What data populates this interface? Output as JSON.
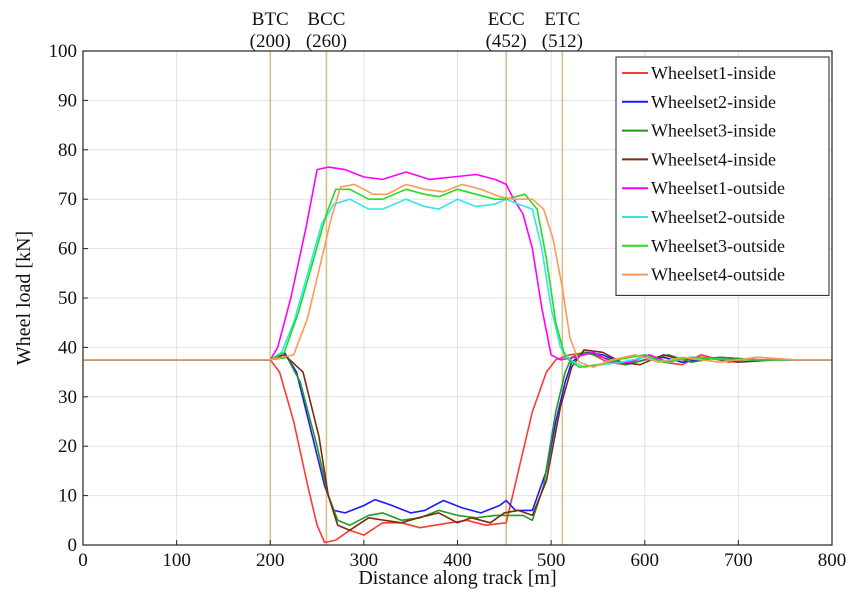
{
  "chart_data": {
    "type": "line",
    "title": "",
    "xlabel": "Distance along track [m]",
    "ylabel": "Wheel load [kN]",
    "xlim": [
      0,
      800
    ],
    "ylim": [
      0,
      100
    ],
    "x_ticks": [
      "0",
      "100",
      "200",
      "300",
      "400",
      "500",
      "600",
      "700",
      "800"
    ],
    "y_ticks": [
      "0",
      "10",
      "20",
      "30",
      "40",
      "50",
      "60",
      "70",
      "80",
      "90",
      "100"
    ],
    "grid": true,
    "legend_position": "top-right",
    "markers": [
      {
        "name": "BTC",
        "value_label": "(200)",
        "x": 200
      },
      {
        "name": "BCC",
        "value_label": "(260)",
        "x": 260
      },
      {
        "name": "ECC",
        "value_label": "(452)",
        "x": 452
      },
      {
        "name": "ETC",
        "value_label": "(512)",
        "x": 512
      }
    ],
    "series": [
      {
        "name": "Wheelset1-inside",
        "color": "#ff3b30",
        "points": [
          [
            0,
            37.5
          ],
          [
            200,
            37.5
          ],
          [
            210,
            35
          ],
          [
            225,
            25
          ],
          [
            240,
            12
          ],
          [
            250,
            4
          ],
          [
            258,
            0.5
          ],
          [
            270,
            1
          ],
          [
            285,
            3
          ],
          [
            300,
            2
          ],
          [
            320,
            4.5
          ],
          [
            340,
            4.5
          ],
          [
            360,
            3.5
          ],
          [
            385,
            4.3
          ],
          [
            410,
            5
          ],
          [
            430,
            4
          ],
          [
            452,
            4.5
          ],
          [
            465,
            15
          ],
          [
            480,
            27
          ],
          [
            495,
            35
          ],
          [
            505,
            37.5
          ],
          [
            520,
            38.5
          ],
          [
            540,
            39
          ],
          [
            560,
            37
          ],
          [
            580,
            36.5
          ],
          [
            600,
            38.5
          ],
          [
            620,
            37
          ],
          [
            640,
            36.5
          ],
          [
            660,
            38.5
          ],
          [
            690,
            37
          ],
          [
            720,
            38
          ],
          [
            760,
            37.5
          ],
          [
            800,
            37.5
          ]
        ]
      },
      {
        "name": "Wheelset2-inside",
        "color": "#1a1aff",
        "points": [
          [
            0,
            37.5
          ],
          [
            200,
            37.5
          ],
          [
            215,
            39
          ],
          [
            228,
            35
          ],
          [
            245,
            22
          ],
          [
            258,
            12
          ],
          [
            268,
            7
          ],
          [
            280,
            6.5
          ],
          [
            300,
            8
          ],
          [
            312,
            9.2
          ],
          [
            330,
            8
          ],
          [
            350,
            6.5
          ],
          [
            365,
            7
          ],
          [
            385,
            9
          ],
          [
            405,
            7.5
          ],
          [
            425,
            6.5
          ],
          [
            445,
            8
          ],
          [
            452,
            9
          ],
          [
            462,
            7
          ],
          [
            480,
            7
          ],
          [
            495,
            15
          ],
          [
            505,
            25
          ],
          [
            515,
            33
          ],
          [
            522,
            37
          ],
          [
            535,
            39
          ],
          [
            555,
            38.5
          ],
          [
            580,
            36.5
          ],
          [
            600,
            37.5
          ],
          [
            620,
            38
          ],
          [
            640,
            37
          ],
          [
            680,
            38
          ],
          [
            720,
            37.5
          ],
          [
            800,
            37.5
          ]
        ]
      },
      {
        "name": "Wheelset3-inside",
        "color": "#1e9e1e",
        "points": [
          [
            0,
            37.5
          ],
          [
            200,
            37.5
          ],
          [
            218,
            38
          ],
          [
            232,
            33
          ],
          [
            250,
            20
          ],
          [
            262,
            10
          ],
          [
            272,
            5
          ],
          [
            285,
            4
          ],
          [
            305,
            6
          ],
          [
            320,
            6.5
          ],
          [
            340,
            5
          ],
          [
            360,
            5.5
          ],
          [
            380,
            7
          ],
          [
            400,
            6
          ],
          [
            420,
            5.5
          ],
          [
            440,
            6
          ],
          [
            455,
            6
          ],
          [
            470,
            6
          ],
          [
            480,
            5
          ],
          [
            492,
            12
          ],
          [
            505,
            27
          ],
          [
            515,
            35
          ],
          [
            522,
            38
          ],
          [
            535,
            39
          ],
          [
            555,
            38
          ],
          [
            580,
            36.5
          ],
          [
            600,
            37.5
          ],
          [
            625,
            38.5
          ],
          [
            650,
            37
          ],
          [
            680,
            38
          ],
          [
            720,
            37.5
          ],
          [
            800,
            37.5
          ]
        ]
      },
      {
        "name": "Wheelset4-inside",
        "color": "#7a2a10",
        "points": [
          [
            0,
            37.5
          ],
          [
            200,
            37.5
          ],
          [
            215,
            38.5
          ],
          [
            235,
            35
          ],
          [
            252,
            22
          ],
          [
            262,
            10
          ],
          [
            272,
            4
          ],
          [
            285,
            3
          ],
          [
            305,
            5.5
          ],
          [
            322,
            5
          ],
          [
            340,
            4.5
          ],
          [
            358,
            5.5
          ],
          [
            380,
            6.5
          ],
          [
            400,
            4.5
          ],
          [
            415,
            5.5
          ],
          [
            435,
            4.5
          ],
          [
            450,
            6.5
          ],
          [
            465,
            7
          ],
          [
            480,
            6
          ],
          [
            495,
            13
          ],
          [
            510,
            28
          ],
          [
            522,
            36
          ],
          [
            535,
            39.5
          ],
          [
            555,
            39
          ],
          [
            575,
            37
          ],
          [
            595,
            36.5
          ],
          [
            620,
            38.5
          ],
          [
            640,
            37.5
          ],
          [
            660,
            38
          ],
          [
            700,
            37
          ],
          [
            740,
            37.5
          ],
          [
            800,
            37.5
          ]
        ]
      },
      {
        "name": "Wheelset1-outside",
        "color": "#ff00ff",
        "points": [
          [
            0,
            37.5
          ],
          [
            200,
            37.5
          ],
          [
            208,
            40
          ],
          [
            222,
            50
          ],
          [
            238,
            64
          ],
          [
            250,
            76
          ],
          [
            262,
            76.5
          ],
          [
            280,
            76
          ],
          [
            300,
            74.5
          ],
          [
            320,
            74
          ],
          [
            345,
            75.5
          ],
          [
            370,
            74
          ],
          [
            395,
            74.5
          ],
          [
            420,
            75
          ],
          [
            440,
            74
          ],
          [
            452,
            73
          ],
          [
            460,
            70
          ],
          [
            470,
            67
          ],
          [
            480,
            60
          ],
          [
            490,
            48
          ],
          [
            500,
            38.5
          ],
          [
            510,
            37.5
          ],
          [
            525,
            38
          ],
          [
            545,
            39
          ],
          [
            565,
            37
          ],
          [
            585,
            37
          ],
          [
            605,
            38.5
          ],
          [
            625,
            37
          ],
          [
            650,
            38
          ],
          [
            690,
            37.5
          ],
          [
            800,
            37.5
          ]
        ]
      },
      {
        "name": "Wheelset2-outside",
        "color": "#33e6e6",
        "points": [
          [
            0,
            37.5
          ],
          [
            200,
            37.5
          ],
          [
            212,
            39
          ],
          [
            225,
            45
          ],
          [
            240,
            55
          ],
          [
            255,
            65
          ],
          [
            268,
            69
          ],
          [
            285,
            70
          ],
          [
            305,
            68
          ],
          [
            320,
            68
          ],
          [
            345,
            70
          ],
          [
            365,
            68.5
          ],
          [
            380,
            68
          ],
          [
            400,
            70
          ],
          [
            420,
            68.5
          ],
          [
            440,
            69
          ],
          [
            452,
            70
          ],
          [
            465,
            69
          ],
          [
            480,
            68
          ],
          [
            490,
            60
          ],
          [
            500,
            48
          ],
          [
            510,
            40
          ],
          [
            520,
            37.5
          ],
          [
            535,
            36
          ],
          [
            555,
            36.5
          ],
          [
            575,
            37
          ],
          [
            600,
            38
          ],
          [
            625,
            37
          ],
          [
            650,
            38
          ],
          [
            690,
            37.5
          ],
          [
            800,
            37.5
          ]
        ]
      },
      {
        "name": "Wheelset3-outside",
        "color": "#22dd22",
        "points": [
          [
            0,
            37.5
          ],
          [
            200,
            37.5
          ],
          [
            215,
            39
          ],
          [
            230,
            47
          ],
          [
            245,
            57
          ],
          [
            260,
            67
          ],
          [
            270,
            72
          ],
          [
            285,
            72
          ],
          [
            305,
            70
          ],
          [
            320,
            70
          ],
          [
            345,
            72
          ],
          [
            365,
            71
          ],
          [
            380,
            70.5
          ],
          [
            400,
            72
          ],
          [
            420,
            71
          ],
          [
            440,
            70
          ],
          [
            452,
            70
          ],
          [
            472,
            71
          ],
          [
            485,
            68
          ],
          [
            495,
            58
          ],
          [
            505,
            45
          ],
          [
            515,
            38
          ],
          [
            530,
            36
          ],
          [
            550,
            36.5
          ],
          [
            570,
            37.5
          ],
          [
            600,
            38.5
          ],
          [
            620,
            37
          ],
          [
            650,
            38
          ],
          [
            690,
            37.5
          ],
          [
            800,
            37.5
          ]
        ]
      },
      {
        "name": "Wheelset4-outside",
        "color": "#ff9955",
        "points": [
          [
            0,
            37.5
          ],
          [
            200,
            37.5
          ],
          [
            225,
            38.5
          ],
          [
            240,
            46
          ],
          [
            255,
            58
          ],
          [
            265,
            66
          ],
          [
            275,
            72.5
          ],
          [
            290,
            73
          ],
          [
            310,
            71
          ],
          [
            325,
            71
          ],
          [
            345,
            73
          ],
          [
            365,
            72
          ],
          [
            385,
            71.5
          ],
          [
            405,
            73
          ],
          [
            425,
            72
          ],
          [
            445,
            70.5
          ],
          [
            460,
            70
          ],
          [
            480,
            70
          ],
          [
            492,
            68
          ],
          [
            502,
            62
          ],
          [
            512,
            52
          ],
          [
            520,
            42
          ],
          [
            530,
            37
          ],
          [
            545,
            36
          ],
          [
            565,
            37.5
          ],
          [
            590,
            38.5
          ],
          [
            615,
            37
          ],
          [
            640,
            38
          ],
          [
            680,
            37
          ],
          [
            720,
            38
          ],
          [
            760,
            37.5
          ],
          [
            800,
            37.5
          ]
        ]
      }
    ]
  }
}
